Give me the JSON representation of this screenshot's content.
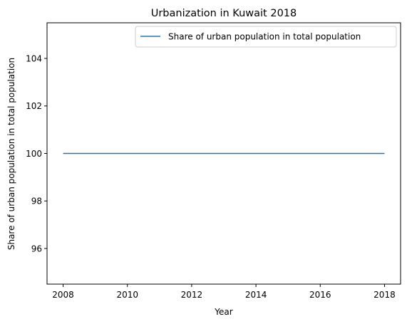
{
  "chart_data": {
    "type": "line",
    "title": "Urbanization in Kuwait 2018",
    "xlabel": "Year",
    "ylabel": "Share of urban population in total population",
    "x": [
      2008,
      2009,
      2010,
      2011,
      2012,
      2013,
      2014,
      2015,
      2016,
      2017,
      2018
    ],
    "series": [
      {
        "name": "Share of urban population in total population",
        "values": [
          100,
          100,
          100,
          100,
          100,
          100,
          100,
          100,
          100,
          100,
          100
        ],
        "color": "#1f77b4"
      }
    ],
    "xlim": [
      2007.5,
      2018.5
    ],
    "ylim": [
      94.5,
      105.5
    ],
    "xticks": [
      "2008",
      "2010",
      "2012",
      "2014",
      "2016",
      "2018"
    ],
    "yticks": [
      "96",
      "98",
      "100",
      "102",
      "104"
    ],
    "grid": false,
    "legend": "upper right"
  }
}
